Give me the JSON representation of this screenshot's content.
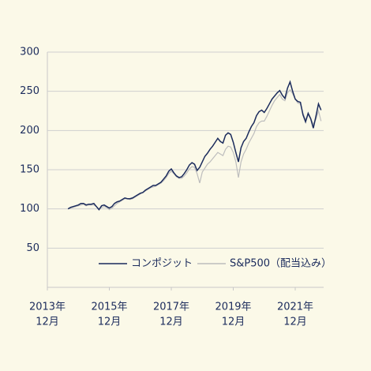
{
  "chart_data": {
    "type": "line",
    "x": [
      "2014-08",
      "2014-09",
      "2014-10",
      "2014-11",
      "2014-12",
      "2015-01",
      "2015-02",
      "2015-03",
      "2015-04",
      "2015-05",
      "2015-06",
      "2015-07",
      "2015-08",
      "2015-09",
      "2015-10",
      "2015-11",
      "2015-12",
      "2016-01",
      "2016-02",
      "2016-03",
      "2016-04",
      "2016-05",
      "2016-06",
      "2016-07",
      "2016-08",
      "2016-09",
      "2016-10",
      "2016-11",
      "2016-12",
      "2017-01",
      "2017-02",
      "2017-03",
      "2017-04",
      "2017-05",
      "2017-06",
      "2017-07",
      "2017-08",
      "2017-09",
      "2017-10",
      "2017-11",
      "2017-12",
      "2018-01",
      "2018-02",
      "2018-03",
      "2018-04",
      "2018-05",
      "2018-06",
      "2018-07",
      "2018-08",
      "2018-09",
      "2018-10",
      "2018-11",
      "2018-12",
      "2019-01",
      "2019-02",
      "2019-03",
      "2019-04",
      "2019-05",
      "2019-06",
      "2019-07",
      "2019-08",
      "2019-09",
      "2019-10",
      "2019-11",
      "2019-12",
      "2020-01",
      "2020-02",
      "2020-03",
      "2020-04",
      "2020-05",
      "2020-06",
      "2020-07",
      "2020-08",
      "2020-09",
      "2020-10",
      "2020-11",
      "2020-12",
      "2021-01",
      "2021-02",
      "2021-03",
      "2021-04",
      "2021-05",
      "2021-06",
      "2021-07",
      "2021-08",
      "2021-09",
      "2021-10",
      "2021-11",
      "2021-12",
      "2022-01",
      "2022-02",
      "2022-03",
      "2022-04",
      "2022-05",
      "2022-06",
      "2022-07",
      "2022-08",
      "2022-09",
      "2022-10"
    ],
    "series": [
      {
        "name": "S&P500（配当込み）",
        "color": "#bdbdbd",
        "values": [
          100,
          101,
          102,
          103,
          104,
          105,
          106,
          104,
          105,
          105,
          105,
          103,
          100,
          102,
          103,
          102,
          99,
          101,
          104,
          107,
          109,
          111,
          113,
          113,
          112,
          113,
          115,
          117,
          119,
          121,
          123,
          125,
          127,
          128,
          129,
          131,
          133,
          136,
          140,
          145,
          148,
          145,
          141,
          139,
          139,
          142,
          146,
          151,
          154,
          153,
          145,
          133,
          147,
          152,
          157,
          160,
          164,
          168,
          172,
          170,
          168,
          176,
          180,
          179,
          172,
          160,
          140,
          160,
          170,
          176,
          184,
          190,
          196,
          205,
          210,
          212,
          212,
          218,
          225,
          232,
          238,
          242,
          246,
          240,
          238,
          248,
          252,
          247,
          240,
          235,
          234,
          222,
          214,
          220,
          215,
          208,
          214,
          225,
          212
        ]
      },
      {
        "name": "コンポジット",
        "color": "#1b2b5c",
        "values": [
          100,
          102,
          103,
          104,
          105,
          107,
          107,
          105,
          106,
          106,
          107,
          103,
          99,
          104,
          105,
          103,
          101,
          103,
          107,
          109,
          110,
          112,
          114,
          113,
          113,
          114,
          116,
          118,
          120,
          121,
          124,
          126,
          128,
          130,
          130,
          132,
          134,
          138,
          142,
          148,
          151,
          146,
          142,
          140,
          141,
          145,
          150,
          156,
          159,
          157,
          149,
          153,
          160,
          167,
          171,
          176,
          180,
          185,
          190,
          186,
          184,
          194,
          197,
          195,
          185,
          172,
          160,
          178,
          186,
          190,
          198,
          205,
          210,
          219,
          224,
          226,
          223,
          228,
          234,
          240,
          244,
          248,
          251,
          245,
          241,
          254,
          262,
          250,
          240,
          237,
          236,
          220,
          211,
          222,
          215,
          203,
          218,
          234,
          226
        ]
      }
    ],
    "xlim": [
      "2013-12",
      "2022-11"
    ],
    "xticks": [
      {
        "value": "2013-12",
        "label": [
          "2013年",
          "12月"
        ]
      },
      {
        "value": "2015-12",
        "label": [
          "2015年",
          "12月"
        ]
      },
      {
        "value": "2017-12",
        "label": [
          "2017年",
          "12月"
        ]
      },
      {
        "value": "2019-12",
        "label": [
          "2019年",
          "12月"
        ]
      },
      {
        "value": "2021-12",
        "label": [
          "2021年",
          "12月"
        ]
      }
    ],
    "ylim": [
      0,
      300
    ],
    "yticks": [
      50,
      100,
      150,
      200,
      250,
      300
    ],
    "grid": true,
    "legend": "bottom"
  }
}
